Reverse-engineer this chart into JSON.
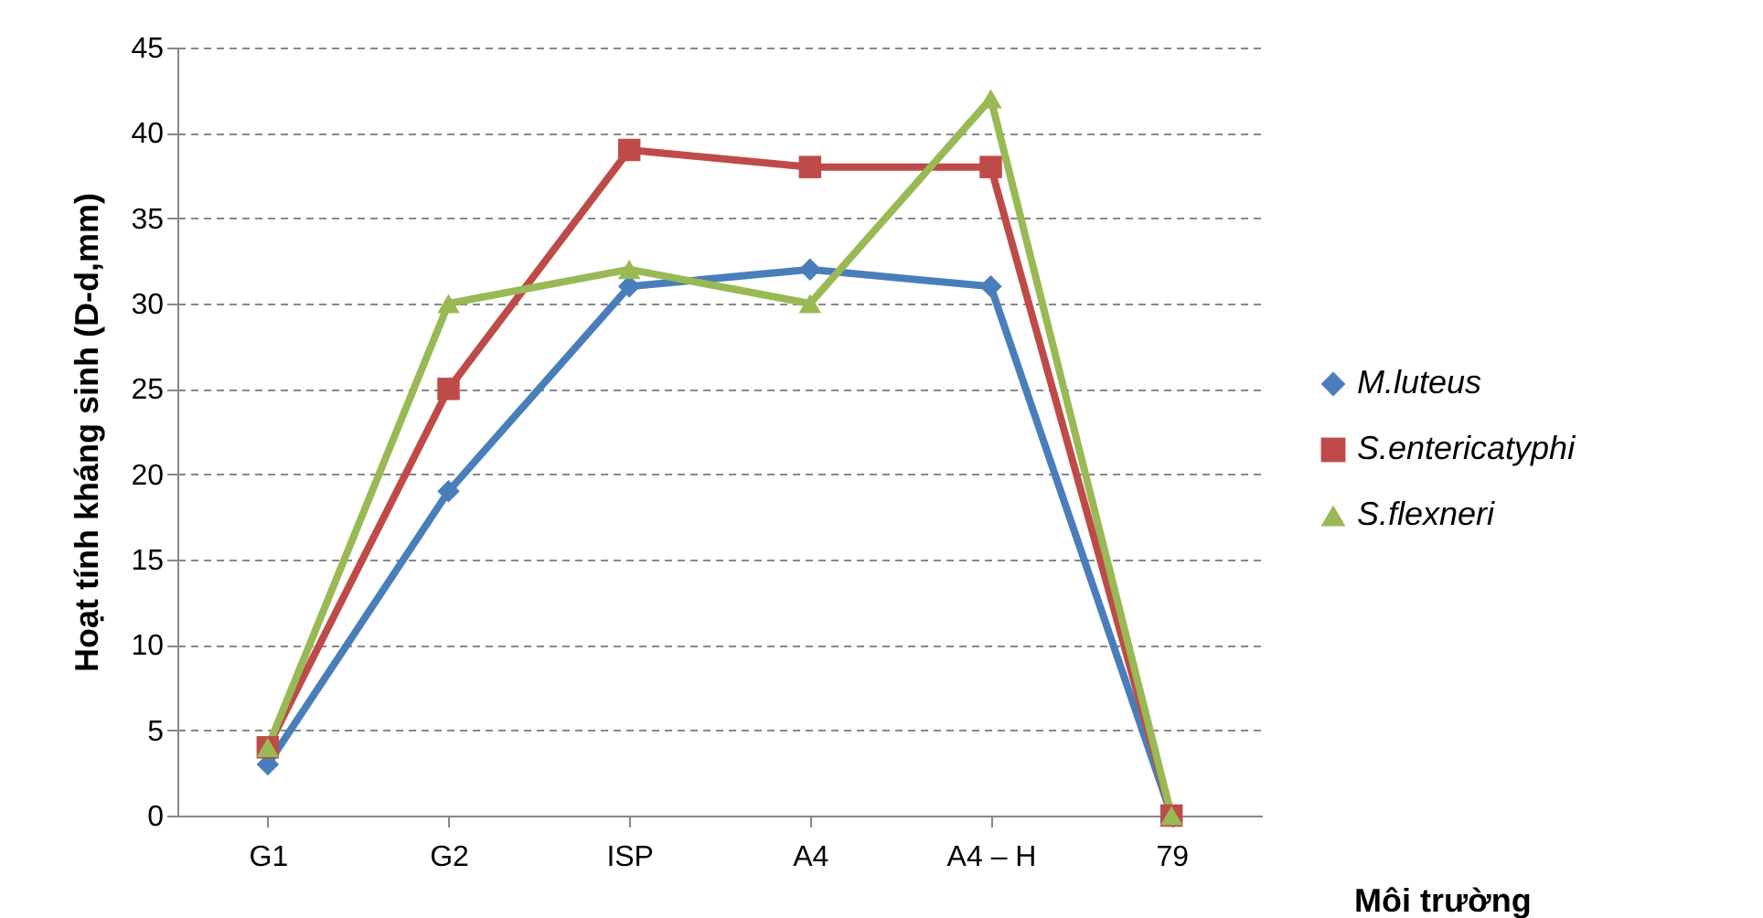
{
  "chart_data": {
    "type": "line",
    "xlabel": "Môi trường",
    "ylabel": "Hoạt tính kháng sinh (D-d,mm)",
    "categories": [
      "G1",
      "G2",
      "ISP",
      "A4",
      "A4 – H",
      "79"
    ],
    "series": [
      {
        "name": "M.luteus",
        "color": "#4a7ebb",
        "marker": "diamond",
        "values": [
          3,
          19,
          31,
          32,
          31,
          0
        ]
      },
      {
        "name": "S.entericatyphi",
        "color": "#be4b48",
        "marker": "square",
        "values": [
          4,
          25,
          39,
          38,
          38,
          0
        ]
      },
      {
        "name": "S.flexneri",
        "color": "#98b954",
        "marker": "triangle",
        "values": [
          4,
          30,
          32,
          30,
          42,
          0
        ]
      }
    ],
    "ylim": [
      0,
      45
    ],
    "yticks": [
      0,
      5,
      10,
      15,
      20,
      25,
      30,
      35,
      40,
      45
    ],
    "grid": "y",
    "legend": "right",
    "line_style": "solid"
  }
}
